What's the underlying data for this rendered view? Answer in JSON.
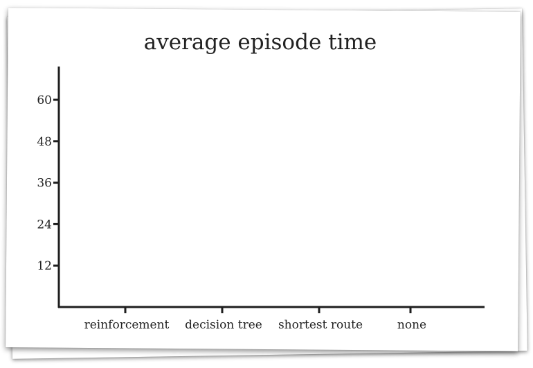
{
  "chart_data": {
    "type": "bar",
    "title": "average episode time",
    "xlabel": "",
    "ylabel": "",
    "categories": [
      "reinforcement",
      "decision tree",
      "shortest route",
      "none"
    ],
    "series": [
      {
        "values": [
          0,
          0,
          0,
          0
        ]
      }
    ],
    "yticks": [
      12,
      24,
      36,
      48,
      60
    ],
    "ylim": [
      0,
      68
    ],
    "grid": false,
    "legend": "none"
  }
}
